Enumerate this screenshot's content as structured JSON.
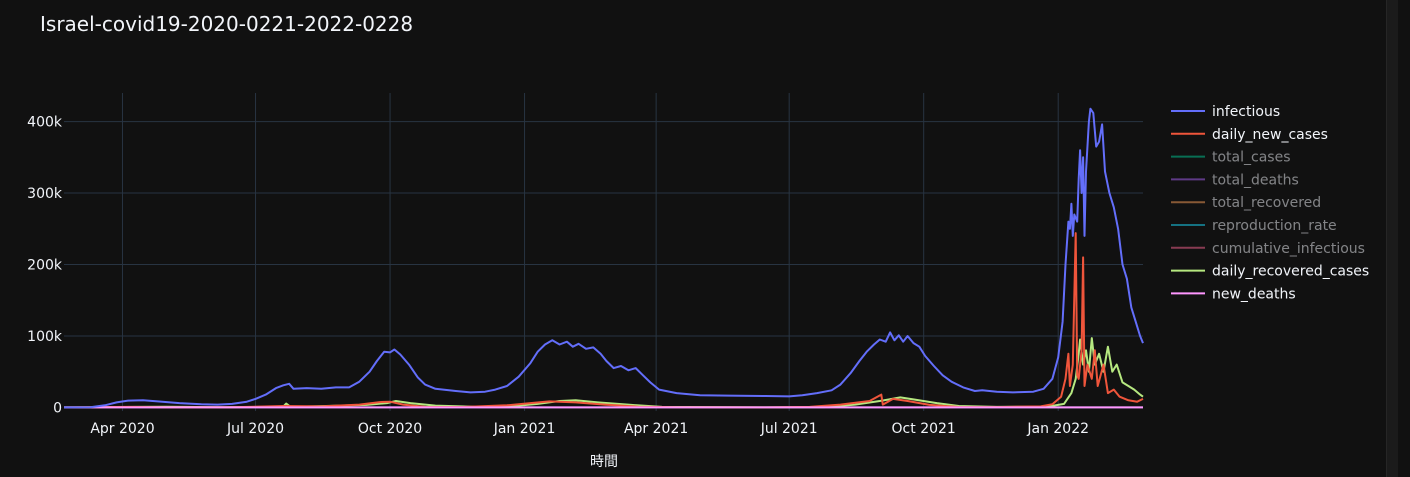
{
  "chart_data": {
    "type": "line",
    "title": "Israel-covid19-2020-0221-2022-0228",
    "xlabel": "時間",
    "ylabel": "",
    "x_range": [
      "2020-02-21",
      "2022-02-28"
    ],
    "ylim": [
      -5000,
      440000
    ],
    "y_ticks": [
      {
        "value": 0,
        "label": "0"
      },
      {
        "value": 100000,
        "label": "100k"
      },
      {
        "value": 200000,
        "label": "200k"
      },
      {
        "value": 300000,
        "label": "300k"
      },
      {
        "value": 400000,
        "label": "400k"
      }
    ],
    "x_ticks": [
      {
        "date": "2020-04-01",
        "label": "Apr 2020"
      },
      {
        "date": "2020-07-01",
        "label": "Jul 2020"
      },
      {
        "date": "2020-10-01",
        "label": "Oct 2020"
      },
      {
        "date": "2021-01-01",
        "label": "Jan 2021"
      },
      {
        "date": "2021-04-01",
        "label": "Apr 2021"
      },
      {
        "date": "2021-07-01",
        "label": "Jul 2021"
      },
      {
        "date": "2021-10-01",
        "label": "Oct 2021"
      },
      {
        "date": "2022-01-01",
        "label": "Jan 2022"
      }
    ],
    "grid": true,
    "legend_position": "right",
    "series": [
      {
        "name": "infectious",
        "color": "#636efa",
        "visible": true,
        "points": [
          [
            "2020-02-21",
            0
          ],
          [
            "2020-03-10",
            200
          ],
          [
            "2020-03-20",
            3000
          ],
          [
            "2020-03-28",
            7000
          ],
          [
            "2020-04-05",
            9500
          ],
          [
            "2020-04-15",
            10000
          ],
          [
            "2020-04-25",
            8500
          ],
          [
            "2020-05-10",
            6000
          ],
          [
            "2020-05-25",
            4500
          ],
          [
            "2020-06-05",
            4000
          ],
          [
            "2020-06-15",
            5000
          ],
          [
            "2020-06-25",
            8000
          ],
          [
            "2020-07-01",
            12000
          ],
          [
            "2020-07-08",
            18000
          ],
          [
            "2020-07-15",
            27000
          ],
          [
            "2020-07-20",
            31000
          ],
          [
            "2020-07-24",
            33000
          ],
          [
            "2020-07-27",
            26000
          ],
          [
            "2020-08-05",
            27000
          ],
          [
            "2020-08-15",
            26000
          ],
          [
            "2020-08-25",
            28000
          ],
          [
            "2020-09-03",
            28000
          ],
          [
            "2020-09-10",
            36000
          ],
          [
            "2020-09-17",
            50000
          ],
          [
            "2020-09-22",
            65000
          ],
          [
            "2020-09-27",
            78000
          ],
          [
            "2020-10-01",
            77000
          ],
          [
            "2020-10-04",
            81000
          ],
          [
            "2020-10-08",
            74000
          ],
          [
            "2020-10-14",
            60000
          ],
          [
            "2020-10-20",
            42000
          ],
          [
            "2020-10-25",
            32000
          ],
          [
            "2020-11-01",
            26000
          ],
          [
            "2020-11-15",
            23000
          ],
          [
            "2020-11-25",
            21000
          ],
          [
            "2020-12-05",
            22000
          ],
          [
            "2020-12-12",
            25000
          ],
          [
            "2020-12-20",
            30000
          ],
          [
            "2020-12-28",
            43000
          ],
          [
            "2021-01-05",
            62000
          ],
          [
            "2021-01-10",
            78000
          ],
          [
            "2021-01-15",
            88000
          ],
          [
            "2021-01-20",
            94000
          ],
          [
            "2021-01-25",
            88000
          ],
          [
            "2021-01-30",
            92000
          ],
          [
            "2021-02-03",
            85000
          ],
          [
            "2021-02-07",
            89000
          ],
          [
            "2021-02-12",
            82000
          ],
          [
            "2021-02-17",
            84000
          ],
          [
            "2021-02-22",
            75000
          ],
          [
            "2021-02-26",
            65000
          ],
          [
            "2021-03-03",
            55000
          ],
          [
            "2021-03-08",
            58000
          ],
          [
            "2021-03-13",
            52000
          ],
          [
            "2021-03-18",
            55000
          ],
          [
            "2021-03-23",
            45000
          ],
          [
            "2021-03-28",
            35000
          ],
          [
            "2021-04-03",
            25000
          ],
          [
            "2021-04-15",
            20000
          ],
          [
            "2021-05-01",
            17000
          ],
          [
            "2021-05-20",
            16500
          ],
          [
            "2021-06-15",
            16000
          ],
          [
            "2021-07-01",
            15500
          ],
          [
            "2021-07-10",
            17000
          ],
          [
            "2021-07-20",
            20000
          ],
          [
            "2021-07-30",
            24000
          ],
          [
            "2021-08-05",
            32000
          ],
          [
            "2021-08-12",
            48000
          ],
          [
            "2021-08-18",
            65000
          ],
          [
            "2021-08-23",
            78000
          ],
          [
            "2021-08-28",
            88000
          ],
          [
            "2021-09-01",
            95000
          ],
          [
            "2021-09-05",
            92000
          ],
          [
            "2021-09-08",
            105000
          ],
          [
            "2021-09-11",
            94000
          ],
          [
            "2021-09-14",
            101000
          ],
          [
            "2021-09-17",
            92000
          ],
          [
            "2021-09-20",
            100000
          ],
          [
            "2021-09-24",
            90000
          ],
          [
            "2021-09-28",
            85000
          ],
          [
            "2021-10-02",
            72000
          ],
          [
            "2021-10-08",
            58000
          ],
          [
            "2021-10-14",
            45000
          ],
          [
            "2021-10-20",
            36000
          ],
          [
            "2021-10-28",
            28000
          ],
          [
            "2021-11-05",
            23000
          ],
          [
            "2021-11-10",
            24000
          ],
          [
            "2021-11-20",
            22000
          ],
          [
            "2021-12-01",
            21000
          ],
          [
            "2021-12-15",
            22000
          ],
          [
            "2021-12-22",
            26000
          ],
          [
            "2021-12-28",
            40000
          ],
          [
            "2022-01-01",
            70000
          ],
          [
            "2022-01-04",
            120000
          ],
          [
            "2022-01-06",
            200000
          ],
          [
            "2022-01-08",
            260000
          ],
          [
            "2022-01-09",
            250000
          ],
          [
            "2022-01-10",
            285000
          ],
          [
            "2022-01-11",
            240000
          ],
          [
            "2022-01-12",
            270000
          ],
          [
            "2022-01-14",
            260000
          ],
          [
            "2022-01-15",
            320000
          ],
          [
            "2022-01-16",
            360000
          ],
          [
            "2022-01-17",
            300000
          ],
          [
            "2022-01-18",
            350000
          ],
          [
            "2022-01-19",
            240000
          ],
          [
            "2022-01-20",
            330000
          ],
          [
            "2022-01-22",
            400000
          ],
          [
            "2022-01-23",
            418000
          ],
          [
            "2022-01-25",
            412000
          ],
          [
            "2022-01-27",
            365000
          ],
          [
            "2022-01-29",
            372000
          ],
          [
            "2022-01-31",
            396000
          ],
          [
            "2022-02-02",
            330000
          ],
          [
            "2022-02-05",
            300000
          ],
          [
            "2022-02-08",
            280000
          ],
          [
            "2022-02-11",
            250000
          ],
          [
            "2022-02-14",
            200000
          ],
          [
            "2022-02-17",
            180000
          ],
          [
            "2022-02-20",
            140000
          ],
          [
            "2022-02-23",
            120000
          ],
          [
            "2022-02-26",
            100000
          ],
          [
            "2022-02-28",
            90000
          ]
        ]
      },
      {
        "name": "daily_new_cases",
        "color": "#ef553b",
        "visible": true,
        "points": [
          [
            "2020-02-21",
            0
          ],
          [
            "2020-03-20",
            500
          ],
          [
            "2020-04-05",
            800
          ],
          [
            "2020-05-01",
            100
          ],
          [
            "2020-06-15",
            300
          ],
          [
            "2020-07-10",
            1500
          ],
          [
            "2020-07-20",
            2000
          ],
          [
            "2020-08-15",
            1500
          ],
          [
            "2020-09-10",
            4000
          ],
          [
            "2020-09-24",
            7500
          ],
          [
            "2020-10-01",
            8000
          ],
          [
            "2020-10-10",
            4000
          ],
          [
            "2020-10-25",
            700
          ],
          [
            "2020-11-20",
            600
          ],
          [
            "2020-12-20",
            3000
          ],
          [
            "2021-01-05",
            6000
          ],
          [
            "2021-01-18",
            8500
          ],
          [
            "2021-02-05",
            7000
          ],
          [
            "2021-02-25",
            4000
          ],
          [
            "2021-03-20",
            1000
          ],
          [
            "2021-04-15",
            200
          ],
          [
            "2021-06-15",
            50
          ],
          [
            "2021-07-15",
            700
          ],
          [
            "2021-08-05",
            4000
          ],
          [
            "2021-08-25",
            9000
          ],
          [
            "2021-09-02",
            18000
          ],
          [
            "2021-09-03",
            4000
          ],
          [
            "2021-09-10",
            12000
          ],
          [
            "2021-09-20",
            9000
          ],
          [
            "2021-10-05",
            3500
          ],
          [
            "2021-10-25",
            600
          ],
          [
            "2021-11-20",
            500
          ],
          [
            "2021-12-20",
            1500
          ],
          [
            "2021-12-28",
            4500
          ],
          [
            "2022-01-03",
            15000
          ],
          [
            "2022-01-06",
            40000
          ],
          [
            "2022-01-08",
            75000
          ],
          [
            "2022-01-09",
            30000
          ],
          [
            "2022-01-11",
            60000
          ],
          [
            "2022-01-13",
            244000
          ],
          [
            "2022-01-14",
            45000
          ],
          [
            "2022-01-15",
            40000
          ],
          [
            "2022-01-17",
            80000
          ],
          [
            "2022-01-18",
            210000
          ],
          [
            "2022-01-19",
            30000
          ],
          [
            "2022-01-21",
            60000
          ],
          [
            "2022-01-24",
            40000
          ],
          [
            "2022-01-26",
            80000
          ],
          [
            "2022-01-28",
            30000
          ],
          [
            "2022-02-01",
            60000
          ],
          [
            "2022-02-04",
            20000
          ],
          [
            "2022-02-08",
            25000
          ],
          [
            "2022-02-12",
            15000
          ],
          [
            "2022-02-18",
            10000
          ],
          [
            "2022-02-24",
            8000
          ],
          [
            "2022-02-28",
            12000
          ]
        ]
      },
      {
        "name": "total_cases",
        "color": "#00cc96",
        "visible": false,
        "points": []
      },
      {
        "name": "total_deaths",
        "color": "#ab63fa",
        "visible": false,
        "points": []
      },
      {
        "name": "total_recovered",
        "color": "#ffa15a",
        "visible": false,
        "points": []
      },
      {
        "name": "reproduction_rate",
        "color": "#19d3f3",
        "visible": false,
        "points": []
      },
      {
        "name": "cumulative_infectious",
        "color": "#ff6692",
        "visible": false,
        "points": []
      },
      {
        "name": "daily_recovered_cases",
        "color": "#b6e880",
        "visible": true,
        "points": [
          [
            "2020-02-21",
            0
          ],
          [
            "2020-04-10",
            700
          ],
          [
            "2020-05-01",
            900
          ],
          [
            "2020-06-10",
            200
          ],
          [
            "2020-07-20",
            1200
          ],
          [
            "2020-07-22",
            5500
          ],
          [
            "2020-07-25",
            800
          ],
          [
            "2020-08-15",
            1800
          ],
          [
            "2020-09-15",
            3500
          ],
          [
            "2020-09-29",
            6000
          ],
          [
            "2020-10-05",
            9000
          ],
          [
            "2020-10-15",
            6000
          ],
          [
            "2020-11-01",
            2500
          ],
          [
            "2020-12-01",
            800
          ],
          [
            "2020-12-25",
            2000
          ],
          [
            "2021-01-10",
            5000
          ],
          [
            "2021-01-25",
            9000
          ],
          [
            "2021-02-05",
            10000
          ],
          [
            "2021-02-20",
            7000
          ],
          [
            "2021-03-15",
            3500
          ],
          [
            "2021-04-05",
            800
          ],
          [
            "2021-06-15",
            50
          ],
          [
            "2021-07-25",
            500
          ],
          [
            "2021-08-15",
            4000
          ],
          [
            "2021-09-01",
            9000
          ],
          [
            "2021-09-15",
            14000
          ],
          [
            "2021-09-25",
            11000
          ],
          [
            "2021-10-10",
            6000
          ],
          [
            "2021-10-25",
            2000
          ],
          [
            "2021-11-20",
            800
          ],
          [
            "2021-12-25",
            1200
          ],
          [
            "2022-01-05",
            5000
          ],
          [
            "2022-01-10",
            20000
          ],
          [
            "2022-01-13",
            40000
          ],
          [
            "2022-01-15",
            75000
          ],
          [
            "2022-01-16",
            95000
          ],
          [
            "2022-01-18",
            60000
          ],
          [
            "2022-01-20",
            80000
          ],
          [
            "2022-01-22",
            50000
          ],
          [
            "2022-01-24",
            97000
          ],
          [
            "2022-01-26",
            60000
          ],
          [
            "2022-01-29",
            75000
          ],
          [
            "2022-02-01",
            50000
          ],
          [
            "2022-02-04",
            85000
          ],
          [
            "2022-02-07",
            50000
          ],
          [
            "2022-02-10",
            60000
          ],
          [
            "2022-02-14",
            35000
          ],
          [
            "2022-02-18",
            30000
          ],
          [
            "2022-02-22",
            25000
          ],
          [
            "2022-02-26",
            18000
          ],
          [
            "2022-02-28",
            15000
          ]
        ]
      },
      {
        "name": "new_deaths",
        "color": "#ff97ff",
        "visible": true,
        "points": [
          [
            "2020-02-21",
            0
          ],
          [
            "2020-10-01",
            40
          ],
          [
            "2021-01-20",
            80
          ],
          [
            "2021-09-01",
            30
          ],
          [
            "2022-01-25",
            60
          ],
          [
            "2022-02-28",
            30
          ]
        ]
      }
    ]
  }
}
